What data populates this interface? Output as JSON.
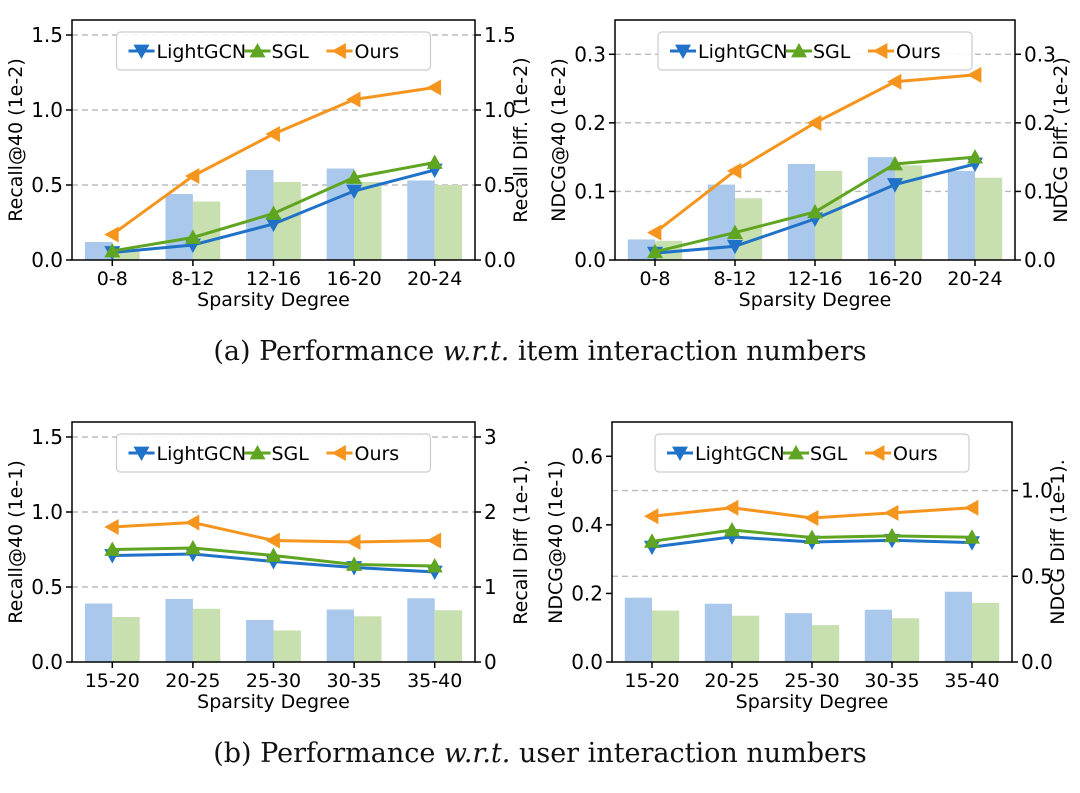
{
  "colors": {
    "bar_left": "#a9c8ec",
    "bar_right": "#c8dfb0",
    "lightgcn": "#1f72c8",
    "sgl": "#5fa521",
    "ours": "#f5951e",
    "grid": "#bbbbbb"
  },
  "captions": {
    "a": {
      "prefix": "(a)  Performance ",
      "italic": "w.r.t.",
      "suffix": " item interaction numbers"
    },
    "b": {
      "prefix": "(b)  Performance ",
      "italic": "w.r.t.",
      "suffix": " user interaction numbers"
    }
  },
  "chart_data": [
    {
      "type": "bar+line",
      "panel": "a-left",
      "categories": [
        "0-8",
        "8-12",
        "12-16",
        "16-20",
        "20-24"
      ],
      "xlabel": "Sparsity Degree",
      "ylabel": "Recall@40 (1e-2)",
      "y2label": "Recall Diff. (1e-2)",
      "ylim": [
        0,
        1.6
      ],
      "yticks": [
        0.0,
        0.5,
        1.0,
        1.5
      ],
      "yticklabels": [
        "0.0",
        "0.5",
        "1.0",
        "1.5"
      ],
      "y2lim": [
        0,
        1.6
      ],
      "y2ticks": [
        0.0,
        0.5,
        1.0,
        1.5
      ],
      "y2ticklabels": [
        "0.0",
        "0.5",
        "1.0",
        "1.5"
      ],
      "grid": [
        0.5,
        1.0,
        1.5
      ],
      "bars": [
        {
          "name": "bar-left",
          "axis": "y2",
          "values": [
            0.12,
            0.44,
            0.6,
            0.61,
            0.53
          ]
        },
        {
          "name": "bar-right",
          "axis": "y2",
          "values": [
            0.07,
            0.39,
            0.52,
            0.52,
            0.5
          ]
        }
      ],
      "series": [
        {
          "name": "LightGCN",
          "marker": "tri-down",
          "values": [
            0.05,
            0.1,
            0.24,
            0.46,
            0.6
          ]
        },
        {
          "name": "SGL",
          "marker": "tri-up",
          "values": [
            0.06,
            0.15,
            0.31,
            0.55,
            0.65
          ]
        },
        {
          "name": "Ours",
          "marker": "tri-left",
          "values": [
            0.17,
            0.56,
            0.84,
            1.07,
            1.15
          ]
        }
      ],
      "legend": "top"
    },
    {
      "type": "bar+line",
      "panel": "a-right",
      "categories": [
        "0-8",
        "8-12",
        "12-16",
        "16-20",
        "20-24"
      ],
      "xlabel": "Sparsity Degree",
      "ylabel": "NDCG@40 (1e-2)",
      "y2label": "NDCG Diff. (1e-2)",
      "ylim": [
        0,
        0.35
      ],
      "yticks": [
        0.0,
        0.1,
        0.2,
        0.3
      ],
      "yticklabels": [
        "0.0",
        "0.1",
        "0.2",
        "0.3"
      ],
      "y2lim": [
        0,
        0.35
      ],
      "y2ticks": [
        0.0,
        0.1,
        0.2,
        0.3
      ],
      "y2ticklabels": [
        "0.0",
        "0.1",
        "0.2",
        "0.3"
      ],
      "grid": [
        0.1,
        0.2,
        0.3
      ],
      "bars": [
        {
          "name": "bar-left",
          "axis": "y2",
          "values": [
            0.03,
            0.11,
            0.14,
            0.15,
            0.13
          ]
        },
        {
          "name": "bar-right",
          "axis": "y2",
          "values": [
            0.028,
            0.09,
            0.13,
            0.138,
            0.12
          ]
        }
      ],
      "series": [
        {
          "name": "LightGCN",
          "marker": "tri-down",
          "values": [
            0.01,
            0.02,
            0.06,
            0.11,
            0.14
          ]
        },
        {
          "name": "SGL",
          "marker": "tri-up",
          "values": [
            0.012,
            0.04,
            0.07,
            0.14,
            0.15
          ]
        },
        {
          "name": "Ours",
          "marker": "tri-left",
          "values": [
            0.04,
            0.13,
            0.2,
            0.26,
            0.27
          ]
        }
      ],
      "legend": "top"
    },
    {
      "type": "bar+line",
      "panel": "b-left",
      "categories": [
        "15-20",
        "20-25",
        "25-30",
        "30-35",
        "35-40"
      ],
      "xlabel": "Sparsity Degree",
      "ylabel": "Recall@40 (1e-1)",
      "y2label": "Recall Diff (1e-1).",
      "ylim": [
        0,
        1.6
      ],
      "yticks": [
        0.0,
        0.5,
        1.0,
        1.5
      ],
      "yticklabels": [
        "0.0",
        "0.5",
        "1.0",
        "1.5"
      ],
      "y2lim": [
        0,
        3.2
      ],
      "y2ticks": [
        0,
        1,
        2,
        3
      ],
      "y2ticklabels": [
        "0",
        "1",
        "2",
        "3"
      ],
      "grid": [
        0.5,
        1.0,
        1.5
      ],
      "bars": [
        {
          "name": "bar-left",
          "axis": "y2",
          "values": [
            0.78,
            0.84,
            0.56,
            0.7,
            0.85
          ]
        },
        {
          "name": "bar-right",
          "axis": "y2",
          "values": [
            0.6,
            0.71,
            0.42,
            0.61,
            0.69
          ]
        }
      ],
      "series": [
        {
          "name": "LightGCN",
          "marker": "tri-down",
          "values": [
            0.71,
            0.72,
            0.67,
            0.63,
            0.6
          ]
        },
        {
          "name": "SGL",
          "marker": "tri-up",
          "values": [
            0.75,
            0.76,
            0.71,
            0.65,
            0.64
          ]
        },
        {
          "name": "Ours",
          "marker": "tri-left",
          "values": [
            0.9,
            0.93,
            0.81,
            0.8,
            0.81
          ]
        }
      ],
      "legend": "top"
    },
    {
      "type": "bar+line",
      "panel": "b-right",
      "categories": [
        "15-20",
        "20-25",
        "25-30",
        "30-35",
        "35-40"
      ],
      "xlabel": "Sparsity Degree",
      "ylabel": "NDCG@40 (1e-1)",
      "y2label": "NDCG Diff (1e-1).",
      "ylim": [
        0,
        0.7
      ],
      "yticks": [
        0.0,
        0.2,
        0.4,
        0.6
      ],
      "yticklabels": [
        "0.0",
        "0.2",
        "0.4",
        "0.6"
      ],
      "y2lim": [
        0,
        1.4
      ],
      "y2ticks": [
        0.0,
        0.5,
        1.0
      ],
      "y2ticklabels": [
        "0.0",
        "0.5",
        "1.0"
      ],
      "grid": [
        0.25,
        0.5
      ],
      "bars": [
        {
          "name": "bar-left",
          "axis": "y2",
          "values": [
            0.375,
            0.34,
            0.285,
            0.305,
            0.41
          ]
        },
        {
          "name": "bar-right",
          "axis": "y2",
          "values": [
            0.3,
            0.27,
            0.215,
            0.255,
            0.345
          ]
        }
      ],
      "series": [
        {
          "name": "LightGCN",
          "marker": "tri-down",
          "values": [
            0.335,
            0.365,
            0.35,
            0.355,
            0.348
          ]
        },
        {
          "name": "SGL",
          "marker": "tri-up",
          "values": [
            0.352,
            0.385,
            0.363,
            0.368,
            0.364
          ]
        },
        {
          "name": "Ours",
          "marker": "tri-left",
          "values": [
            0.425,
            0.45,
            0.42,
            0.435,
            0.45
          ]
        }
      ],
      "legend": "top"
    }
  ]
}
